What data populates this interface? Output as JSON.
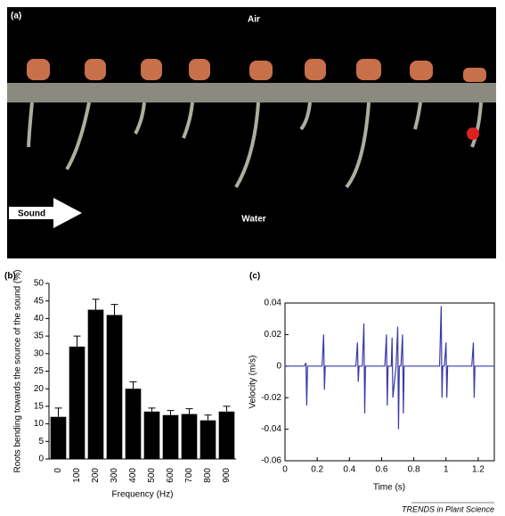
{
  "photo": {
    "label": "(a)",
    "air": "Air",
    "water": "Water",
    "sound": "Sound"
  },
  "chart_data": [
    {
      "type": "bar",
      "panel_label": "(b)",
      "y_label": "Roots bending towards the source of the sound (%)",
      "x_label": "Frequency (Hz)",
      "categories": [
        "0",
        "100",
        "200",
        "300",
        "400",
        "500",
        "600",
        "700",
        "800",
        "900"
      ],
      "values": [
        12,
        32,
        42.5,
        41,
        20,
        13.5,
        12.5,
        12.8,
        11,
        13.5
      ],
      "errors": [
        2.5,
        3,
        3,
        3,
        2,
        1,
        1.3,
        1.5,
        1.5,
        1.5
      ],
      "color": "#000000",
      "ylim": [
        0,
        50
      ],
      "yticks": [
        0,
        5,
        10,
        15,
        20,
        25,
        30,
        35,
        40,
        45,
        50
      ]
    },
    {
      "type": "line",
      "panel_label": "(c)",
      "y_label": "Velocity (m/s)",
      "x_label": "Time (s)",
      "x": [
        0,
        0.12,
        0.13,
        0.135,
        0.14,
        0.23,
        0.24,
        0.245,
        0.25,
        0.44,
        0.45,
        0.455,
        0.46,
        0.48,
        0.49,
        0.495,
        0.5,
        0.62,
        0.63,
        0.635,
        0.64,
        0.66,
        0.665,
        0.67,
        0.69,
        0.7,
        0.705,
        0.71,
        0.72,
        0.73,
        0.735,
        0.74,
        0.96,
        0.97,
        0.975,
        0.98,
        0.99,
        1.0,
        1.005,
        1.01,
        1.16,
        1.17,
        1.175,
        1.18,
        1.3
      ],
      "values": [
        0,
        0,
        0.002,
        -0.025,
        0,
        0,
        0.02,
        -0.015,
        0,
        0,
        0.015,
        -0.01,
        0,
        0,
        0.027,
        -0.03,
        0,
        0,
        0.02,
        -0.025,
        0,
        0,
        0.018,
        -0.02,
        0,
        0.025,
        -0.04,
        0,
        0,
        0.02,
        -0.03,
        0,
        0,
        0.038,
        -0.02,
        0,
        0,
        0.015,
        -0.02,
        0,
        0,
        0.015,
        -0.02,
        0,
        0
      ],
      "color": "#3a3aa8",
      "xlim": [
        0,
        1.3
      ],
      "xticks": [
        0,
        0.2,
        0.4,
        0.6,
        0.8,
        1,
        1.2
      ],
      "ylim": [
        -0.06,
        0.04
      ],
      "yticks": [
        -0.06,
        -0.04,
        -0.02,
        0,
        0.02,
        0.04
      ]
    }
  ],
  "footer": "TRENDS in Plant Science"
}
